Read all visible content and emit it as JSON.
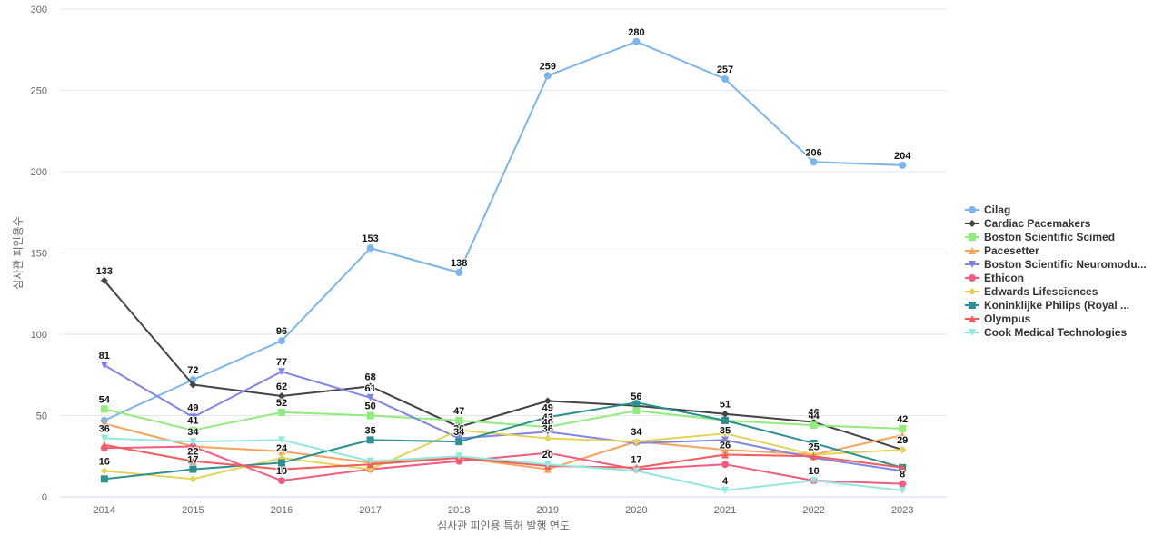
{
  "chart_data": {
    "type": "line",
    "title": "",
    "xlabel": "심사관 피인용 특허 발행 연도",
    "ylabel": "심사관 피인용수",
    "x": [
      "2014",
      "2015",
      "2016",
      "2017",
      "2018",
      "2019",
      "2020",
      "2021",
      "2022",
      "2023"
    ],
    "yticks": [
      "0",
      "50",
      "100",
      "150",
      "200",
      "250",
      "300"
    ],
    "ylim": [
      0,
      300
    ],
    "grid": true,
    "legend": "right",
    "series": [
      {
        "name": "Cilag",
        "color": "#7cb5ec",
        "marker": "circle",
        "values": [
          47,
          72,
          96,
          153,
          138,
          259,
          280,
          257,
          206,
          204
        ]
      },
      {
        "name": "Cardiac Pacemakers",
        "color": "#434348",
        "marker": "diamond",
        "values": [
          133,
          69,
          62,
          68,
          43,
          59,
          56,
          51,
          46,
          29
        ]
      },
      {
        "name": "Boston Scientific Scimed",
        "color": "#90ed7d",
        "marker": "square",
        "values": [
          54,
          41,
          52,
          50,
          47,
          43,
          53,
          47,
          44,
          42
        ]
      },
      {
        "name": "Pacesetter",
        "color": "#f7a35c",
        "marker": "triangle",
        "values": [
          45,
          31,
          28,
          21,
          24,
          17,
          34,
          29,
          26,
          38
        ]
      },
      {
        "name": "Boston Scientific Neuromodu...",
        "color": "#8085e9",
        "marker": "triangle-down",
        "values": [
          81,
          49,
          77,
          61,
          36,
          40,
          33,
          35,
          24,
          16
        ]
      },
      {
        "name": "Ethicon",
        "color": "#f15c80",
        "marker": "circle",
        "values": [
          30,
          31,
          10,
          17,
          22,
          27,
          17,
          20,
          10,
          8
        ]
      },
      {
        "name": "Edwards Lifesciences",
        "color": "#e4d354",
        "marker": "diamond",
        "values": [
          16,
          11,
          24,
          17,
          41,
          36,
          34,
          39,
          26,
          29
        ]
      },
      {
        "name": "Koninklijke Philips (Royal ...",
        "color": "#2b908f",
        "marker": "square",
        "values": [
          11,
          17,
          21,
          35,
          34,
          49,
          58,
          47,
          33,
          18
        ]
      },
      {
        "name": "Olympus",
        "color": "#f45b5b",
        "marker": "triangle",
        "values": [
          32,
          22,
          17,
          20,
          24,
          19,
          18,
          26,
          25,
          18
        ]
      },
      {
        "name": "Cook Medical Technologies",
        "color": "#91e8e1",
        "marker": "triangle-down",
        "values": [
          36,
          34,
          35,
          22,
          25,
          20,
          16,
          4,
          10,
          4
        ]
      }
    ],
    "data_labels": [
      {
        "series": 0,
        "points": [
          1,
          2,
          3,
          4,
          5,
          6,
          7,
          8,
          9
        ]
      },
      {
        "series": 1,
        "points": [
          0,
          2,
          3,
          6,
          7,
          8,
          9
        ]
      },
      {
        "series": 2,
        "points": [
          0,
          1,
          2,
          3,
          4,
          5,
          8,
          9
        ]
      },
      {
        "series": 4,
        "points": [
          0,
          1,
          2,
          3,
          4,
          5,
          7
        ]
      },
      {
        "series": 5,
        "points": [
          2,
          6,
          8,
          9
        ]
      },
      {
        "series": 6,
        "points": [
          0,
          2,
          5,
          6,
          9
        ]
      },
      {
        "series": 7,
        "points": [
          1,
          3,
          4,
          5
        ]
      },
      {
        "series": 8,
        "points": [
          1,
          7,
          8
        ]
      },
      {
        "series": 9,
        "points": [
          0,
          1,
          5,
          7
        ]
      }
    ]
  }
}
